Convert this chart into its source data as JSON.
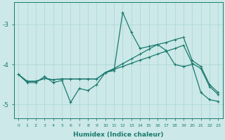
{
  "xlabel": "Humidex (Indice chaleur)",
  "xlim": [
    -0.5,
    23.5
  ],
  "ylim": [
    -5.35,
    -2.45
  ],
  "yticks": [
    -5,
    -4,
    -3
  ],
  "xticks": [
    0,
    1,
    2,
    3,
    4,
    5,
    6,
    7,
    8,
    9,
    10,
    11,
    12,
    13,
    14,
    15,
    16,
    17,
    18,
    19,
    20,
    21,
    22,
    23
  ],
  "bg_color": "#cce8e8",
  "grid_color": "#aad4d4",
  "line_color": "#1a7a6e",
  "line1_x": [
    0,
    1,
    2,
    3,
    4,
    5,
    6,
    7,
    8,
    9,
    10,
    11,
    12,
    13,
    14,
    15,
    16,
    17,
    18,
    19,
    20,
    21,
    22,
    23
  ],
  "line1_y": [
    -4.25,
    -4.45,
    -4.45,
    -4.3,
    -4.45,
    -4.4,
    -4.95,
    -4.6,
    -4.65,
    -4.5,
    -4.2,
    -4.15,
    -2.7,
    -3.2,
    -3.6,
    -3.55,
    -3.5,
    -3.65,
    -4.0,
    -4.05,
    -4.0,
    -4.7,
    -4.88,
    -4.92
  ],
  "line2_x": [
    0,
    1,
    2,
    3,
    4,
    5,
    6,
    7,
    8,
    9,
    10,
    11,
    12,
    13,
    14,
    15,
    16,
    17,
    18,
    19,
    20,
    21,
    22,
    23
  ],
  "line2_y": [
    -4.25,
    -4.42,
    -4.42,
    -4.35,
    -4.38,
    -4.36,
    -4.36,
    -4.36,
    -4.36,
    -4.36,
    -4.2,
    -4.12,
    -4.05,
    -3.97,
    -3.89,
    -3.82,
    -3.74,
    -3.67,
    -3.6,
    -3.52,
    -3.97,
    -4.1,
    -4.55,
    -4.75
  ],
  "line3_x": [
    0,
    1,
    2,
    3,
    4,
    5,
    6,
    7,
    8,
    9,
    10,
    11,
    12,
    13,
    14,
    15,
    16,
    17,
    18,
    19,
    20,
    21,
    22,
    23
  ],
  "line3_y": [
    -4.25,
    -4.42,
    -4.42,
    -4.35,
    -4.38,
    -4.36,
    -4.36,
    -4.36,
    -4.36,
    -4.36,
    -4.2,
    -4.1,
    -3.98,
    -3.86,
    -3.74,
    -3.62,
    -3.5,
    -3.45,
    -3.38,
    -3.32,
    -3.9,
    -4.05,
    -4.5,
    -4.7
  ]
}
